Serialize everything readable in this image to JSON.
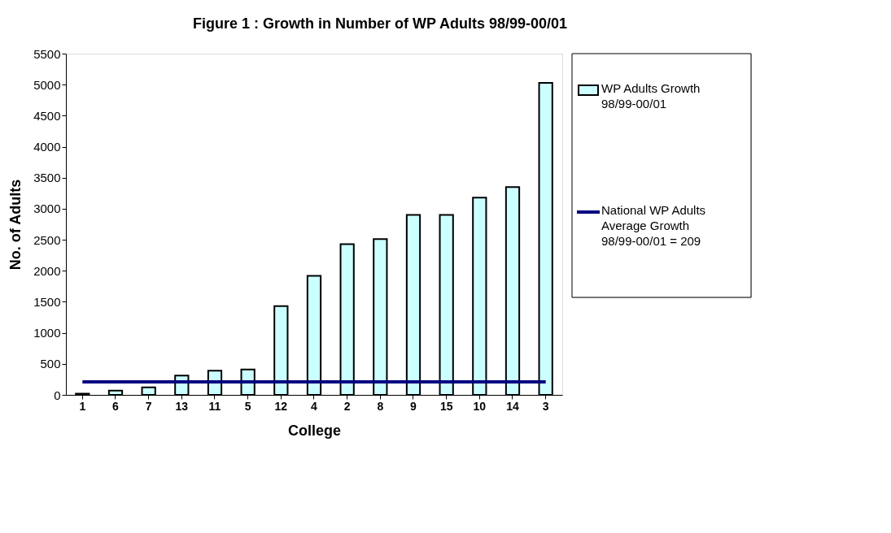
{
  "chart_data": {
    "type": "bar",
    "title": "Figure 1 : Growth in Number of WP Adults 98/99-00/01",
    "xlabel": "College",
    "ylabel": "No. of Adults",
    "categories": [
      "1",
      "6",
      "7",
      "13",
      "11",
      "5",
      "12",
      "4",
      "2",
      "8",
      "9",
      "15",
      "10",
      "14",
      "3"
    ],
    "series": [
      {
        "name": "WP Adults Growth 98/99-00/01",
        "color": "#ccffff",
        "values": [
          20,
          70,
          120,
          310,
          390,
          410,
          1430,
          1920,
          2430,
          2510,
          2900,
          2900,
          3180,
          3350,
          5030
        ]
      },
      {
        "name": "National WP Adults Average Growth 98/99-00/01 = 209",
        "type": "line",
        "color": "#000080",
        "values": [
          209,
          209,
          209,
          209,
          209,
          209,
          209,
          209,
          209,
          209,
          209,
          209,
          209,
          209,
          209
        ]
      }
    ],
    "ylim": [
      0,
      5500
    ],
    "yticks": [
      0,
      500,
      1000,
      1500,
      2000,
      2500,
      3000,
      3500,
      4000,
      4500,
      5000,
      5500
    ],
    "grid": false,
    "legend": "right"
  }
}
